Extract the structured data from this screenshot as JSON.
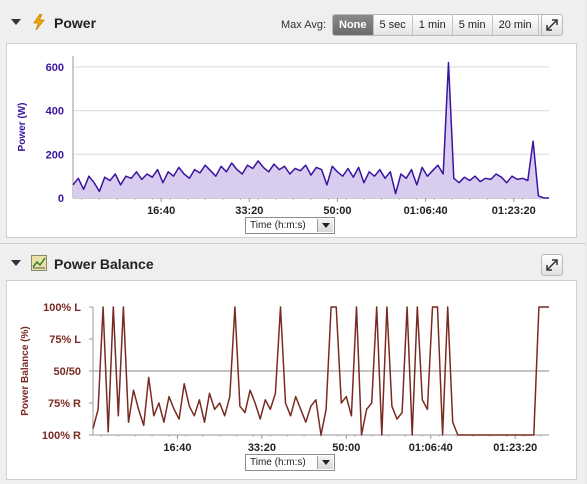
{
  "power": {
    "title": "Power",
    "max_avg_label": "Max Avg:",
    "max_avg_options": [
      "None",
      "5 sec",
      "1 min",
      "5 min",
      "20 min"
    ],
    "max_avg_selected": "None",
    "x_selector": "Time (h:m:s)"
  },
  "balance": {
    "title": "Power Balance",
    "x_selector": "Time (h:m:s)"
  },
  "colors": {
    "power_line": "#3a14a0",
    "power_fill": "#d8cdef",
    "power_axis_text": "#3a14a0",
    "balance_line": "#7a2a22",
    "balance_axis_text": "#7a2a22"
  },
  "chart_data": [
    {
      "type": "area",
      "ylabel": "Power (W)",
      "xlabel": "",
      "x_ticks": [
        "16:40",
        "33:20",
        "50:00",
        "01:06:40",
        "01:23:20"
      ],
      "y_ticks": [
        "0",
        "200",
        "400",
        "600"
      ],
      "x_range_s": [
        0,
        5400
      ],
      "ylim": [
        0,
        650
      ],
      "grid": "horizontal",
      "series": [
        {
          "x_s": [
            0,
            60,
            120,
            180,
            240,
            300,
            360,
            420,
            480,
            540,
            600,
            660,
            720,
            780,
            840,
            900,
            960,
            1020,
            1080,
            1140,
            1200,
            1260,
            1320,
            1380,
            1440,
            1500,
            1560,
            1620,
            1680,
            1740,
            1800,
            1860,
            1920,
            1980,
            2040,
            2100,
            2160,
            2220,
            2280,
            2340,
            2400,
            2460,
            2520,
            2580,
            2640,
            2700,
            2760,
            2820,
            2880,
            2940,
            3000,
            3060,
            3120,
            3180,
            3240,
            3300,
            3360,
            3420,
            3480,
            3540,
            3600,
            3660,
            3720,
            3780,
            3840,
            3900,
            3960,
            4020,
            4080,
            4140,
            4200,
            4260,
            4320,
            4380,
            4440,
            4500,
            4560,
            4620,
            4680,
            4740,
            4800,
            4860,
            4920,
            4980,
            5040,
            5100,
            5160,
            5220,
            5280,
            5340,
            5400
          ],
          "values": [
            60,
            90,
            40,
            100,
            70,
            30,
            95,
            80,
            110,
            60,
            100,
            90,
            120,
            85,
            110,
            95,
            130,
            70,
            120,
            100,
            140,
            110,
            90,
            130,
            115,
            150,
            125,
            100,
            145,
            120,
            160,
            130,
            110,
            150,
            135,
            170,
            140,
            120,
            155,
            130,
            145,
            110,
            135,
            125,
            150,
            105,
            140,
            130,
            60,
            145,
            120,
            100,
            135,
            95,
            140,
            70,
            120,
            100,
            130,
            90,
            120,
            20,
            110,
            90,
            130,
            60,
            140,
            100,
            125,
            150,
            110,
            620,
            90,
            70,
            95,
            80,
            100,
            75,
            90,
            85,
            110,
            95,
            70,
            100,
            85,
            90,
            80,
            260,
            10,
            0,
            0
          ]
        }
      ]
    },
    {
      "type": "line",
      "ylabel": "Power Balance (%)",
      "xlabel": "",
      "x_ticks": [
        "16:40",
        "33:20",
        "50:00",
        "01:06:40",
        "01:23:20"
      ],
      "y_ticks": [
        "100% R",
        "75% R",
        "50/50",
        "75% L",
        "100% L"
      ],
      "x_range_s": [
        0,
        5400
      ],
      "ylim": [
        -100,
        100
      ],
      "grid": "midline",
      "series": [
        {
          "x_s": [
            0,
            60,
            120,
            180,
            240,
            300,
            360,
            420,
            480,
            540,
            600,
            660,
            720,
            780,
            840,
            900,
            960,
            1020,
            1080,
            1140,
            1200,
            1260,
            1320,
            1380,
            1440,
            1500,
            1560,
            1620,
            1680,
            1740,
            1800,
            1860,
            1920,
            1980,
            2040,
            2100,
            2160,
            2220,
            2280,
            2340,
            2400,
            2460,
            2520,
            2580,
            2640,
            2700,
            2760,
            2820,
            2880,
            2940,
            3000,
            3060,
            3120,
            3180,
            3240,
            3300,
            3360,
            3420,
            3480,
            3540,
            3600,
            3660,
            3720,
            3780,
            3840,
            3900,
            3960,
            4020,
            4080,
            4140,
            4200,
            4260,
            4320,
            4380,
            4440,
            4500,
            4560,
            4620,
            4680,
            4740,
            4800,
            4860,
            4920,
            4980,
            5040,
            5100,
            5160,
            5220,
            5280,
            5340,
            5400
          ],
          "values": [
            -90,
            -60,
            100,
            -95,
            100,
            -70,
            100,
            -80,
            -30,
            -60,
            -85,
            -10,
            -70,
            -50,
            -80,
            -40,
            -60,
            -75,
            -20,
            -55,
            -70,
            -45,
            -80,
            -35,
            -60,
            -50,
            -70,
            -40,
            100,
            -55,
            -65,
            -30,
            -50,
            -75,
            -45,
            -60,
            -35,
            100,
            -50,
            -70,
            -40,
            -60,
            -80,
            -55,
            -45,
            -100,
            -60,
            100,
            100,
            -50,
            -40,
            -70,
            100,
            -100,
            -60,
            -50,
            100,
            -100,
            100,
            -55,
            -75,
            -65,
            100,
            -100,
            100,
            -45,
            -60,
            100,
            100,
            -100,
            100,
            -80,
            -100,
            -100,
            -100,
            -100,
            -100,
            -100,
            -100,
            -100,
            -100,
            -100,
            -100,
            -100,
            -100,
            -100,
            -100,
            -100,
            100,
            100,
            100
          ]
        }
      ]
    }
  ]
}
